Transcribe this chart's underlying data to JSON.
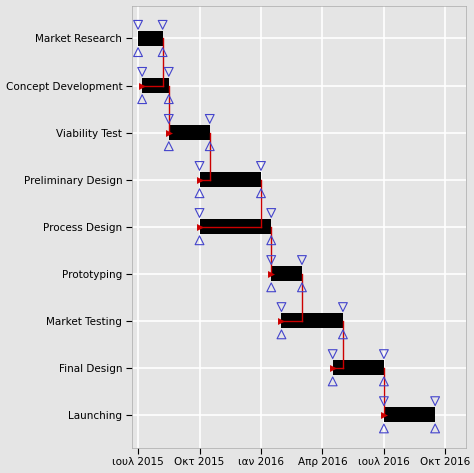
{
  "tasks": [
    "Market Research",
    "Concept Development",
    "Viability Test",
    "Preliminary Design",
    "Process Design",
    "Prototyping",
    "Market Testing",
    "Final Design",
    "Launching"
  ],
  "bars": [
    {
      "start": 0.0,
      "end": 1.2
    },
    {
      "start": 0.2,
      "end": 1.5
    },
    {
      "start": 1.5,
      "end": 3.5
    },
    {
      "start": 3.0,
      "end": 6.0
    },
    {
      "start": 3.0,
      "end": 6.5
    },
    {
      "start": 6.5,
      "end": 8.0
    },
    {
      "start": 7.0,
      "end": 10.0
    },
    {
      "start": 9.5,
      "end": 12.0
    },
    {
      "start": 12.0,
      "end": 14.5
    }
  ],
  "xtick_positions": [
    0,
    3,
    6,
    9,
    12,
    15
  ],
  "xtick_labels": [
    "ιουλ 2015",
    "Οκτ 2015",
    "ιαν 2016",
    "Απρ 2016",
    "ιουλ 2016",
    "Οκτ 2016"
  ],
  "bg_color": "#e5e5e5",
  "bar_color": "black",
  "bar_height": 0.32,
  "grid_color": "white",
  "tri_color": "#4444cc",
  "connector_color": "#cc0000",
  "tri_size": 40,
  "connector_connections": [
    [
      0,
      1
    ],
    [
      1,
      2
    ],
    [
      2,
      3
    ],
    [
      3,
      4
    ],
    [
      4,
      5
    ],
    [
      5,
      6
    ],
    [
      6,
      7
    ],
    [
      7,
      8
    ]
  ],
  "xlim": [
    -0.3,
    16.0
  ],
  "ylim": [
    -0.7,
    8.7
  ]
}
